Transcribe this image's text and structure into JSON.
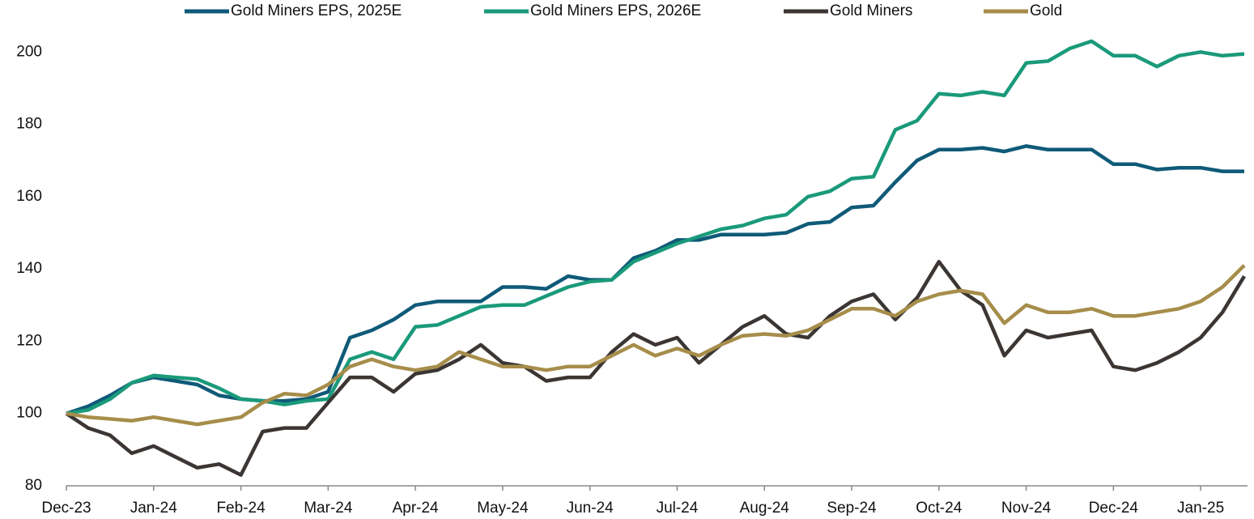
{
  "chart_data": {
    "type": "line",
    "categories": [
      "Dec-23",
      null,
      null,
      null,
      "Jan-24",
      null,
      null,
      null,
      "Feb-24",
      null,
      null,
      null,
      "Mar-24",
      null,
      null,
      null,
      "Apr-24",
      null,
      null,
      null,
      "May-24",
      null,
      null,
      null,
      "Jun-24",
      null,
      null,
      null,
      "Jul-24",
      null,
      null,
      null,
      "Aug-24",
      null,
      null,
      null,
      "Sep-24",
      null,
      null,
      null,
      "Oct-24",
      null,
      null,
      null,
      "Nov-24",
      null,
      null,
      null,
      "Dec-24",
      null,
      null,
      null,
      "Jan-25",
      null,
      null
    ],
    "series": [
      {
        "name": "Gold Miners EPS, 2025E",
        "color": "#0f5a78",
        "values": [
          100,
          102,
          105,
          108.5,
          110,
          109,
          108,
          105,
          104,
          103.5,
          103.5,
          104,
          106,
          121,
          123,
          126,
          130,
          131,
          131,
          131,
          135,
          135,
          134.5,
          138,
          137,
          137,
          143,
          145,
          148,
          148,
          149.5,
          149.5,
          149.5,
          150,
          152.5,
          153,
          157,
          157.5,
          164,
          170,
          173,
          173,
          173.5,
          172.5,
          174,
          173,
          173,
          173,
          169,
          169,
          167.5,
          168,
          168,
          167,
          167
        ]
      },
      {
        "name": "Gold Miners EPS, 2026E",
        "color": "#1a9a7a",
        "values": [
          100,
          101,
          104,
          108.5,
          110.5,
          110,
          109.5,
          107,
          104,
          103.5,
          102.5,
          103.5,
          104,
          115,
          117,
          115,
          124,
          124.5,
          127,
          129.5,
          130,
          130,
          132.5,
          135,
          136.5,
          137,
          142,
          144.5,
          147,
          149,
          151,
          152,
          154,
          155,
          160,
          161.5,
          165,
          165.5,
          178.5,
          181,
          188.5,
          188,
          189,
          188,
          197,
          197.5,
          201,
          203,
          199,
          199,
          196,
          199,
          200,
          199,
          199.5
        ]
      },
      {
        "name": "Gold Miners",
        "color": "#3b3633",
        "values": [
          100,
          96,
          94,
          89,
          91,
          88,
          85,
          86,
          83,
          95,
          96,
          96,
          103,
          110,
          110,
          106,
          111,
          112,
          115,
          119,
          114,
          113,
          109,
          110,
          110,
          117,
          122,
          119,
          121,
          114,
          119,
          124,
          127,
          122,
          121,
          127,
          131,
          133,
          126,
          132,
          142,
          134,
          130,
          116,
          123,
          121,
          122,
          123,
          113,
          112,
          114,
          117,
          121,
          128,
          138
        ]
      },
      {
        "name": "Gold",
        "color": "#a68d4a",
        "values": [
          100,
          99,
          98.5,
          98,
          99,
          98,
          97,
          98,
          99,
          103,
          105.5,
          105,
          108,
          113,
          115,
          113,
          112,
          113,
          117,
          115,
          113,
          113,
          112,
          113,
          113,
          116,
          119,
          116,
          118,
          116,
          119,
          121.5,
          122,
          121.5,
          123,
          126,
          129,
          129,
          127,
          131,
          133,
          134,
          133,
          125,
          130,
          128,
          128,
          129,
          127,
          127,
          128,
          129,
          131,
          135,
          141
        ]
      }
    ],
    "ylim": [
      80,
      205
    ],
    "yticks": [
      80,
      100,
      120,
      140,
      160,
      180,
      200
    ],
    "legend": "top"
  }
}
